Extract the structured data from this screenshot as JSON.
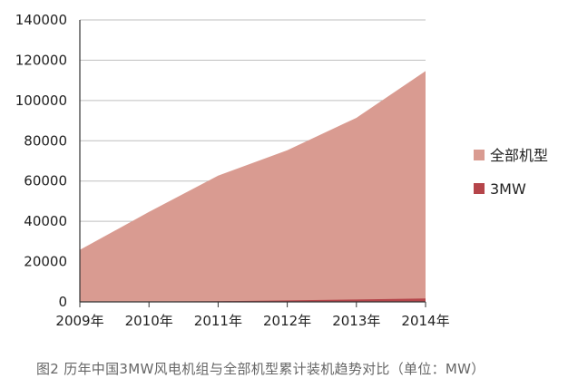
{
  "chart_data": {
    "type": "area",
    "title": "",
    "xlabel": "",
    "ylabel": "",
    "categories": [
      "2009年",
      "2010年",
      "2011年",
      "2012年",
      "2013年",
      "2014年"
    ],
    "series": [
      {
        "name": "全部机型",
        "values": [
          25800,
          44700,
          62700,
          75300,
          91400,
          114600
        ],
        "color": "#d99b91"
      },
      {
        "name": "3MW",
        "values": [
          60,
          150,
          350,
          750,
          1200,
          1700
        ],
        "color": "#b5454a"
      }
    ],
    "ylim": [
      0,
      140000
    ],
    "yticks": [
      "0",
      "20000",
      "40000",
      "60000",
      "80000",
      "100000",
      "120000",
      "140000"
    ],
    "grid": true,
    "legend_position": "right",
    "stacked": true
  },
  "caption": "图2 历年中国3MW风电机组与全部机型累计装机趋势对比（单位：MW）"
}
